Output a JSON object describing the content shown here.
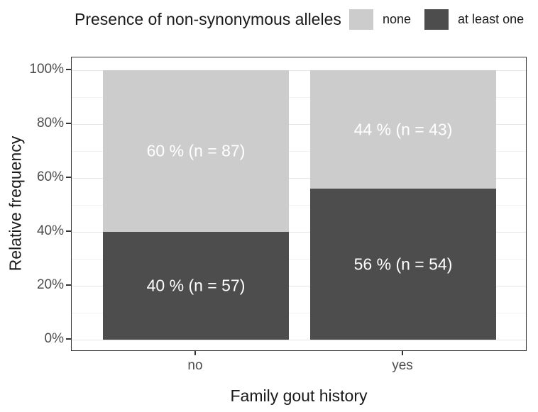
{
  "page": {
    "background": "#ffffff"
  },
  "legend": {
    "title": "Presence of non-synonymous alleles",
    "position": "top",
    "items": [
      {
        "label": "none",
        "color": "#cccccc"
      },
      {
        "label": "at least one",
        "color": "#4d4d4d"
      }
    ]
  },
  "chart_data": {
    "type": "bar",
    "stacked": true,
    "orientation": "vertical",
    "title": "",
    "legend_title": "Presence of non-synonymous alleles",
    "xlabel": "Family gout history",
    "ylabel": "Relative frequency",
    "categories": [
      "no",
      "yes"
    ],
    "series": [
      {
        "name": "at least one",
        "color": "#4d4d4d",
        "values": [
          40,
          56
        ],
        "counts": [
          57,
          54
        ],
        "bar_labels": [
          "40 % (n = 57)",
          "56 % (n = 54)"
        ]
      },
      {
        "name": "none",
        "color": "#cccccc",
        "values": [
          60,
          44
        ],
        "counts": [
          87,
          43
        ],
        "bar_labels": [
          "60 % (n = 87)",
          "44 % (n = 43)"
        ]
      }
    ],
    "ylim": [
      0,
      100
    ],
    "yticks_major": [
      0,
      20,
      40,
      60,
      80,
      100
    ],
    "ytick_labels": [
      "0%",
      "20%",
      "40%",
      "60%",
      "80%",
      "100%"
    ],
    "yticks_minor": [
      10,
      30,
      50,
      70,
      90
    ],
    "grid": true,
    "legend_position": "top",
    "bar_label_color": "#ffffff"
  },
  "colors": {
    "panel_border": "#333333",
    "grid_major": "#e6e6e6",
    "grid_minor": "#f2f2f2",
    "tick_mark": "#333333",
    "tick_label": "#4d4d4d",
    "axis_title": "#1a1a1a",
    "bar_none": "#cccccc",
    "bar_at_least_one": "#4d4d4d"
  }
}
